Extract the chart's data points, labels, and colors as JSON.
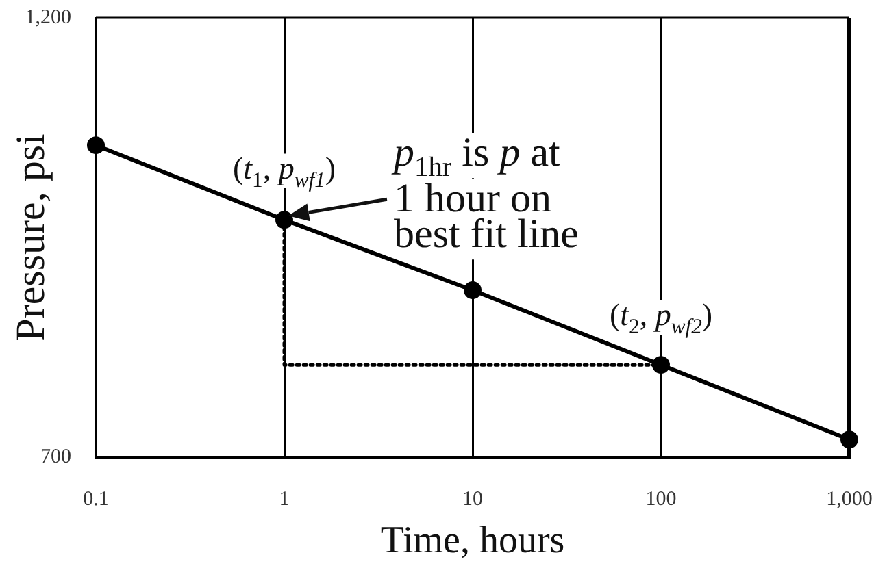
{
  "chart_data": {
    "type": "line",
    "xlabel": "Time, hours",
    "ylabel": "Pressure, psi",
    "log": "x",
    "grid": "x",
    "xlim": [
      0.1,
      1000
    ],
    "xticks": [
      0.1,
      1,
      10,
      100,
      {
        "value": 1000,
        "label": "1,000"
      }
    ],
    "ylim": [
      700,
      1200
    ],
    "yticks": [
      700,
      {
        "value": 1200,
        "label": "1,200"
      }
    ],
    "series": [
      {
        "color": "#000000",
        "marker": "circle",
        "line_style": "solid",
        "x": [
          0.1,
          1,
          10,
          100,
          1000
        ],
        "values": [
          1055,
          970,
          890,
          805,
          720
        ]
      },
      {
        "color": "#000000",
        "marker": "none",
        "line_style": "dotted",
        "x": [
          1,
          1,
          100
        ],
        "values": [
          970,
          805,
          805
        ]
      }
    ],
    "annotations": [
      {
        "text": "(t$_{1}$, p$_{wf1}$)",
        "x": 1,
        "y": 970
      },
      "p$_{1hr}$ is p at 1 hour on best fit line",
      {
        "text": "(t$_{2}$, p$_{wf2}$)",
        "x": 100,
        "y": 805
      }
    ]
  }
}
